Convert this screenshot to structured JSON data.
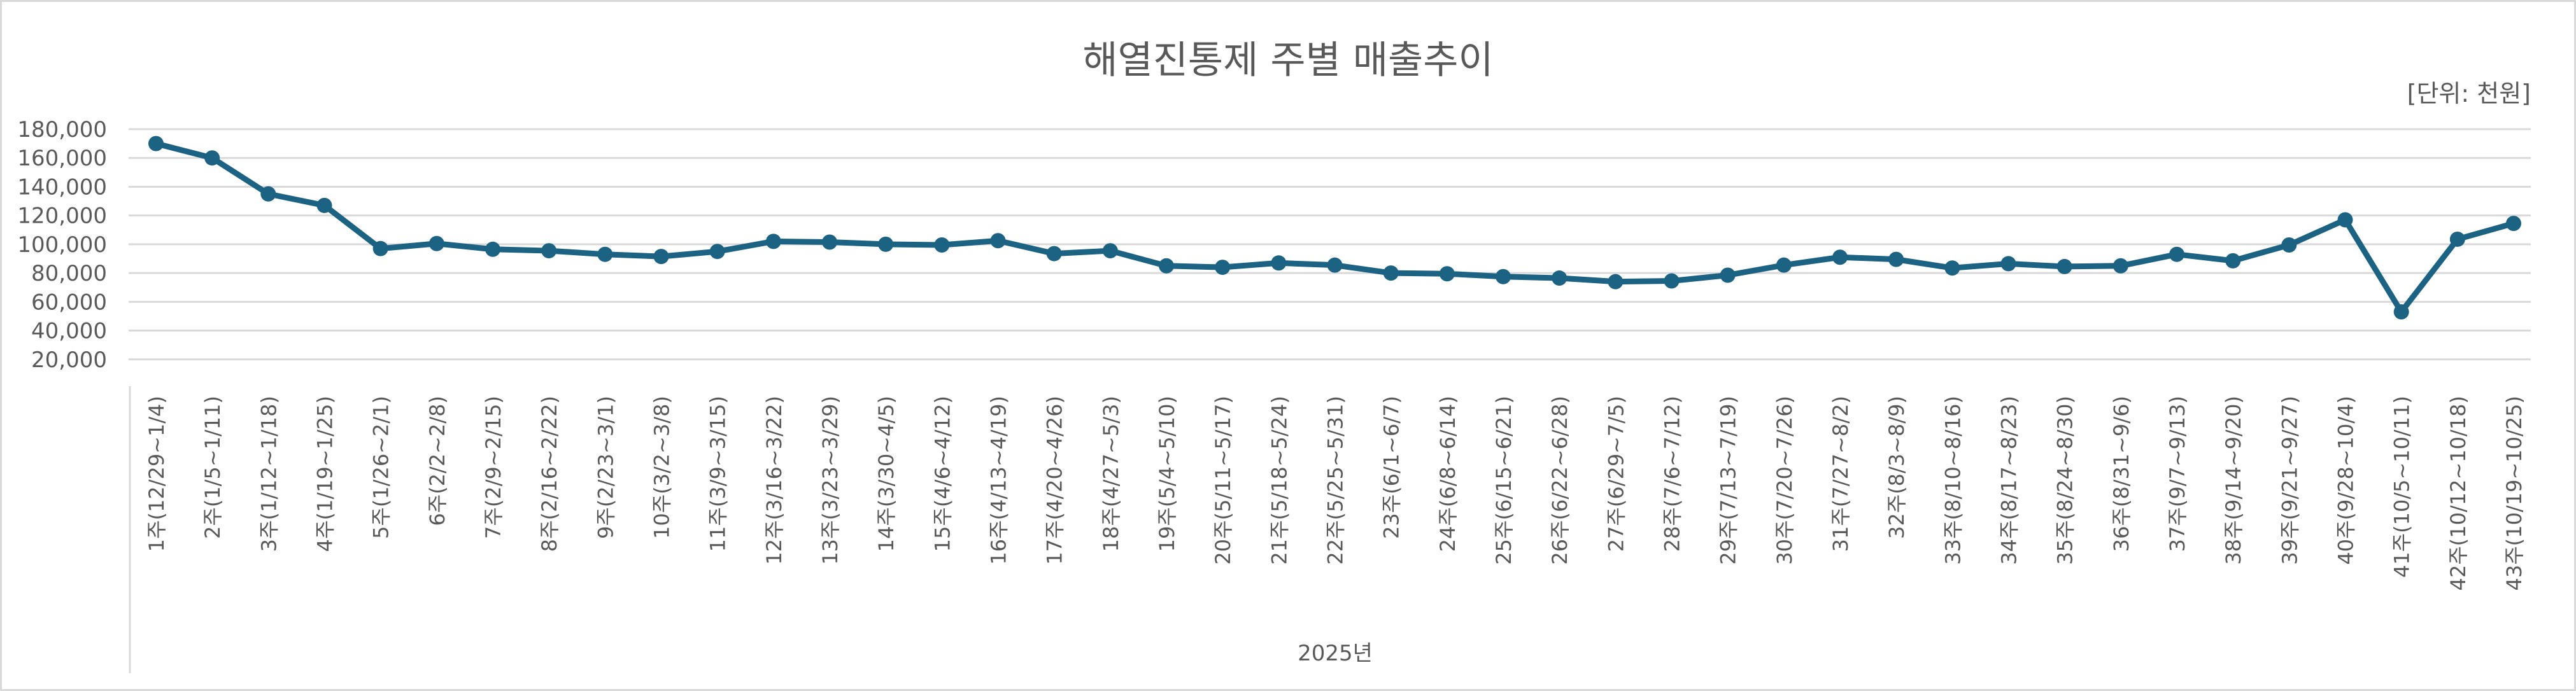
{
  "chart_data": {
    "type": "line",
    "title": "해열진통제 주별 매출추이",
    "unit_label": "[단위: 천원]",
    "xlabel": "2025년",
    "ylabel": "",
    "ylim": [
      0,
      180000
    ],
    "yticks": [
      "20,000",
      "40,000",
      "60,000",
      "80,000",
      "100,000",
      "120,000",
      "140,000",
      "160,000",
      "180,000"
    ],
    "ytick_values": [
      20000,
      40000,
      60000,
      80000,
      100000,
      120000,
      140000,
      160000,
      180000
    ],
    "grid": true,
    "legend": "none",
    "color": "#1b6283",
    "categories": [
      "1주(12/29~1/4)",
      "2주(1/5~1/11)",
      "3주(1/12~1/18)",
      "4주(1/19~1/25)",
      "5주(1/26~2/1)",
      "6주(2/2~2/8)",
      "7주(2/9~2/15)",
      "8주(2/16~2/22)",
      "9주(2/23~3/1)",
      "10주(3/2~3/8)",
      "11주(3/9~3/15)",
      "12주(3/16~3/22)",
      "13주(3/23~3/29)",
      "14주(3/30~4/5)",
      "15주(4/6~4/12)",
      "16주(4/13~4/19)",
      "17주(4/20~4/26)",
      "18주(4/27~5/3)",
      "19주(5/4~5/10)",
      "20주(5/11~5/17)",
      "21주(5/18~5/24)",
      "22주(5/25~5/31)",
      "23주(6/1~6/7)",
      "24주(6/8~6/14)",
      "25주(6/15~6/21)",
      "26주(6/22~6/28)",
      "27주(6/29~7/5)",
      "28주(7/6~7/12)",
      "29주(7/13~7/19)",
      "30주(7/20~7/26)",
      "31주(7/27~8/2)",
      "32주(8/3~8/9)",
      "33주(8/10~8/16)",
      "34주(8/17~8/23)",
      "35주(8/24~8/30)",
      "36주(8/31~9/6)",
      "37주(9/7~9/13)",
      "38주(9/14~9/20)",
      "39주(9/21~9/27)",
      "40주(9/28~10/4)",
      "41주(10/5~10/11)",
      "42주(10/12~10/18)",
      "43주(10/19~10/25)"
    ],
    "series": [
      {
        "name": "매출",
        "values": [
          170000,
          160000,
          135000,
          127000,
          97000,
          100500,
          96500,
          95500,
          93000,
          91500,
          95000,
          102000,
          101500,
          100000,
          99500,
          102500,
          93500,
          95500,
          85000,
          84000,
          87000,
          85500,
          80000,
          79500,
          77500,
          76500,
          74000,
          74500,
          78500,
          85500,
          91000,
          89500,
          83500,
          86500,
          84500,
          85000,
          93000,
          88500,
          99500,
          117000,
          53000,
          103500,
          114500
        ]
      }
    ]
  }
}
